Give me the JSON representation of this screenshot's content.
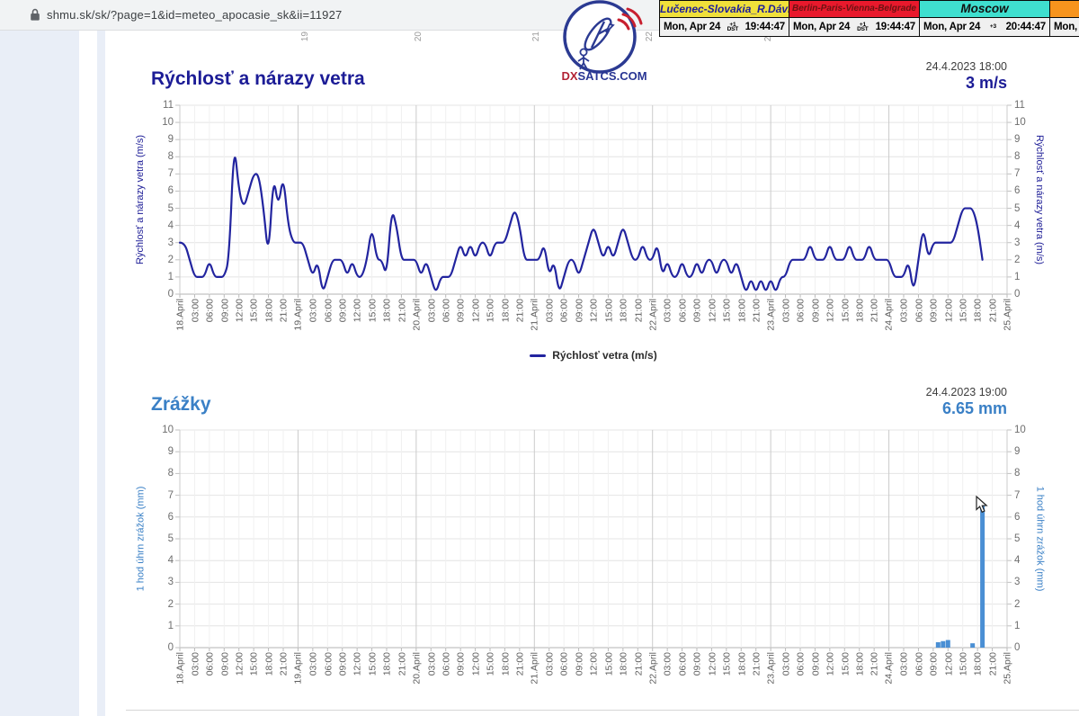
{
  "browser": {
    "url": "shmu.sk/sk/?page=1&id=meteo_apocasie_sk&ii=11927"
  },
  "clocks": [
    {
      "label": "Lučenec-Slovakia_R.Dávid",
      "header_bg": "#f0e03a",
      "header_text_color": "#1d1d9b",
      "date": "Mon, Apr 24",
      "offset": "+1",
      "dst": "DST",
      "time": "19:44:47"
    },
    {
      "label": "Berlin-Paris-Vienna-Belgrade",
      "header_bg": "#e8192c",
      "header_text_color": "#6b1212",
      "date": "Mon, Apr 24",
      "offset": "+1",
      "dst": "DST",
      "time": "19:44:47"
    },
    {
      "label": "Moscow",
      "header_bg": "#3fdfcf",
      "header_text_color": "#111111",
      "date": "Mon, Apr 24",
      "offset": "+3",
      "dst": "",
      "time": "20:44:47"
    },
    {
      "label": "",
      "header_bg": "#f7941d",
      "header_text_color": "#111111",
      "date": "Mon,",
      "offset": "",
      "dst": "",
      "time": ""
    }
  ],
  "logo": {
    "text_dx": "DX",
    "text_rest": "SATCS.COM"
  },
  "top_remnant_labels": [
    "19",
    "20",
    "21",
    "22",
    "23"
  ],
  "chart_data": [
    {
      "type": "line",
      "title": "Rýchlosť a nárazy vetra",
      "timestamp": "24.4.2023 18:00",
      "current_value": "3 m/s",
      "accent_color": "#1c1c96",
      "ylabel": "Rýchlosť a nárazy vetra (m/s)",
      "xlabel": "",
      "ylim": [
        0,
        11
      ],
      "grid": true,
      "legend_position": "bottom-center",
      "x_unit": "hours since 18 April 00:00",
      "x_hours_total": 168,
      "x_tick_labels": [
        "18.April",
        "03:00",
        "06:00",
        "09:00",
        "12:00",
        "15:00",
        "18:00",
        "21:00",
        "19.April",
        "03:00",
        "06:00",
        "09:00",
        "12:00",
        "15:00",
        "18:00",
        "21:00",
        "20.April",
        "03:00",
        "06:00",
        "09:00",
        "12:00",
        "15:00",
        "18:00",
        "21:00",
        "21.April",
        "03:00",
        "06:00",
        "09:00",
        "12:00",
        "15:00",
        "18:00",
        "21:00",
        "22.April",
        "03:00",
        "06:00",
        "09:00",
        "12:00",
        "15:00",
        "18:00",
        "21:00",
        "23.April",
        "03:00",
        "06:00",
        "09:00",
        "12:00",
        "15:00",
        "18:00",
        "21:00",
        "24.April",
        "03:00",
        "06:00",
        "09:00",
        "12:00",
        "15:00",
        "18:00",
        "21:00",
        "25.April"
      ],
      "series": [
        {
          "name": "Rýchlosť vetra (m/s)",
          "color": "#22249f",
          "values": [
            3,
            3,
            2,
            1,
            1,
            1,
            2,
            1,
            1,
            1,
            2,
            9,
            6,
            5,
            6,
            7,
            7,
            5,
            2,
            7,
            5,
            7,
            4,
            3,
            3,
            3,
            2,
            1,
            2,
            0,
            1,
            2,
            2,
            2,
            1,
            2,
            1,
            1,
            2,
            4,
            2,
            2,
            1,
            5,
            4,
            2,
            2,
            2,
            2,
            1,
            2,
            1,
            0,
            1,
            1,
            1,
            2,
            3,
            2,
            3,
            2,
            3,
            3,
            2,
            3,
            3,
            3,
            4,
            5,
            4,
            2,
            2,
            2,
            2,
            3,
            1,
            2,
            0,
            1,
            2,
            2,
            1,
            2,
            3,
            4,
            3,
            2,
            3,
            2,
            3,
            4,
            3,
            2,
            2,
            3,
            2,
            2,
            3,
            1,
            2,
            1,
            1,
            2,
            1,
            1,
            2,
            1,
            2,
            2,
            1,
            2,
            2,
            1,
            2,
            1,
            0,
            1,
            0,
            1,
            0,
            1,
            0,
            1,
            1,
            2,
            2,
            2,
            2,
            3,
            2,
            2,
            2,
            3,
            2,
            2,
            2,
            3,
            2,
            2,
            2,
            3,
            2,
            2,
            2,
            2,
            1,
            1,
            1,
            2,
            0,
            2,
            4,
            2,
            3,
            3,
            3,
            3,
            3,
            4,
            5,
            5,
            5,
            4,
            2
          ]
        }
      ]
    },
    {
      "type": "bar",
      "title": "Zrážky",
      "timestamp": "24.4.2023 19:00",
      "current_value": "6.65 mm",
      "accent_color": "#3a80c6",
      "ylabel": "1 hod úhrn zrážok (mm)",
      "xlabel": "",
      "ylim": [
        0,
        10
      ],
      "grid": true,
      "bar_color": "#4a8fd4",
      "x_unit": "hours since 18 April 00:00",
      "x_hours_total": 168,
      "x_tick_labels": [
        "18.April",
        "03:00",
        "06:00",
        "09:00",
        "12:00",
        "15:00",
        "18:00",
        "21:00",
        "19.April",
        "03:00",
        "06:00",
        "09:00",
        "12:00",
        "15:00",
        "18:00",
        "21:00",
        "20.April",
        "03:00",
        "06:00",
        "09:00",
        "12:00",
        "15:00",
        "18:00",
        "21:00",
        "21.April",
        "03:00",
        "06:00",
        "09:00",
        "12:00",
        "15:00",
        "18:00",
        "21:00",
        "22.April",
        "03:00",
        "06:00",
        "09:00",
        "12:00",
        "15:00",
        "18:00",
        "21:00",
        "23.April",
        "03:00",
        "06:00",
        "09:00",
        "12:00",
        "15:00",
        "18:00",
        "21:00",
        "24.April",
        "03:00",
        "06:00",
        "09:00",
        "12:00",
        "15:00",
        "18:00",
        "21:00",
        "25.April"
      ],
      "bars": [
        {
          "hour": 154,
          "value": 0.25
        },
        {
          "hour": 155,
          "value": 0.3
        },
        {
          "hour": 156,
          "value": 0.35
        },
        {
          "hour": 161,
          "value": 0.2
        },
        {
          "hour": 163,
          "value": 6.65
        }
      ]
    }
  ]
}
